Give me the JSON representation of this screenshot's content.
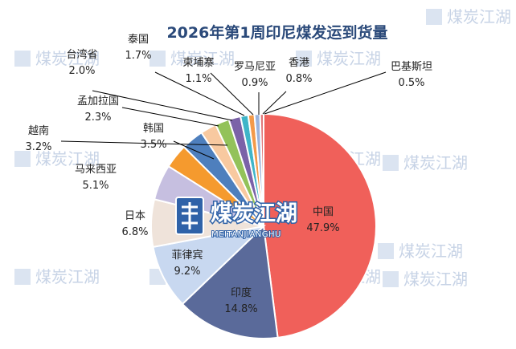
{
  "watermark": {
    "text": "煤炭江湖"
  },
  "logo": {
    "cn": "煤炭江湖",
    "en": "MEITANJIANGHU"
  },
  "chart_data": {
    "type": "pie",
    "title": "2026年第1周印尼煤发运到货量",
    "unit": "%",
    "slices": [
      {
        "name": "中国",
        "value": 47.9,
        "label": "47.9%",
        "color": "#f0605a"
      },
      {
        "name": "印度",
        "value": 14.8,
        "label": "14.8%",
        "color": "#5a6a9a"
      },
      {
        "name": "菲律宾",
        "value": 9.2,
        "label": "9.2%",
        "color": "#c8d8f0"
      },
      {
        "name": "日本",
        "value": 6.8,
        "label": "6.8%",
        "color": "#efe3da"
      },
      {
        "name": "马来西亚",
        "value": 5.1,
        "label": "5.1%",
        "color": "#c6bfe0"
      },
      {
        "name": "韩国",
        "value": 3.5,
        "label": "3.5%",
        "color": "#f59a2e"
      },
      {
        "name": "越南",
        "value": 3.2,
        "label": "3.2%",
        "color": "#4e7fbd"
      },
      {
        "name": "孟加拉国",
        "value": 2.3,
        "label": "2.3%",
        "color": "#f8c9a0"
      },
      {
        "name": "台湾省",
        "value": 2.0,
        "label": "2.0%",
        "color": "#93c25a"
      },
      {
        "name": "泰国",
        "value": 1.7,
        "label": "1.7%",
        "color": "#7b62a8"
      },
      {
        "name": "柬埔寨",
        "value": 1.1,
        "label": "1.1%",
        "color": "#3fb5c8"
      },
      {
        "name": "罗马尼亚",
        "value": 0.9,
        "label": "0.9%",
        "color": "#f39a4a"
      },
      {
        "name": "香港",
        "value": 0.8,
        "label": "0.8%",
        "color": "#9bb3dc"
      },
      {
        "name": "巴基斯坦",
        "value": 0.5,
        "label": "0.5%",
        "color": "#e0787a"
      }
    ],
    "start_angle_deg": 0,
    "direction": "clockwise",
    "legend": "none"
  }
}
